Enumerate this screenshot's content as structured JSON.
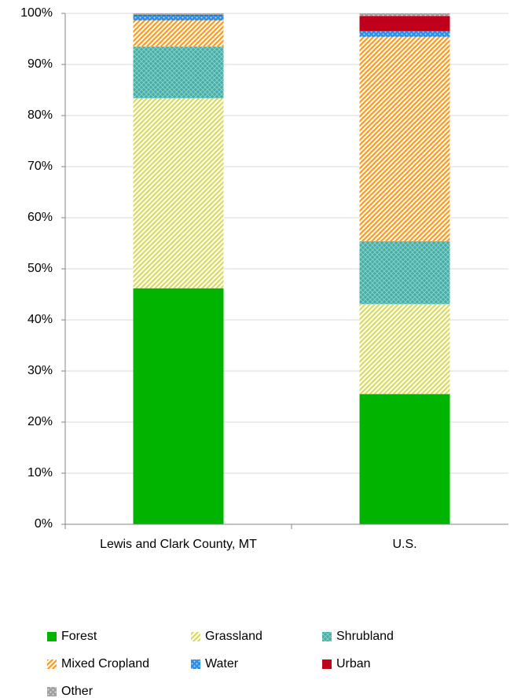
{
  "chart_data": {
    "type": "stacked_bar",
    "categories": [
      "Lewis and Clark County, MT",
      "U.S."
    ],
    "series": [
      {
        "name": "Forest",
        "color": "#00b400",
        "pattern": "solid",
        "values": [
          46.2,
          25.5
        ]
      },
      {
        "name": "Grassland",
        "color": "#d8d86a",
        "pattern": "diagonal",
        "values": [
          37.2,
          17.6
        ]
      },
      {
        "name": "Shrubland",
        "color": "#45aea6",
        "pattern": "crosshatch",
        "values": [
          10.1,
          12.3
        ]
      },
      {
        "name": "Mixed Cropland",
        "color": "#f79a2a",
        "pattern": "diagonal",
        "values": [
          5.1,
          40.0
        ]
      },
      {
        "name": "Water",
        "color": "#2f8de4",
        "pattern": "dots",
        "values": [
          1.0,
          1.1
        ]
      },
      {
        "name": "Urban",
        "color": "#c0001a",
        "pattern": "solid",
        "values": [
          0.1,
          3.0
        ]
      },
      {
        "name": "Other",
        "color": "#a0a0a0",
        "pattern": "dots",
        "values": [
          0.3,
          0.5
        ]
      }
    ],
    "ylim": [
      0,
      100
    ],
    "yticks": [
      {
        "value": 0,
        "label": "0%"
      },
      {
        "value": 10,
        "label": "10%"
      },
      {
        "value": 20,
        "label": "20%"
      },
      {
        "value": 30,
        "label": "30%"
      },
      {
        "value": 40,
        "label": "40%"
      },
      {
        "value": 50,
        "label": "50%"
      },
      {
        "value": 60,
        "label": "60%"
      },
      {
        "value": 70,
        "label": "70%"
      },
      {
        "value": 80,
        "label": "80%"
      },
      {
        "value": 90,
        "label": "90%"
      },
      {
        "value": 100,
        "label": "100%"
      }
    ],
    "grid": true,
    "legend": "bottom"
  }
}
